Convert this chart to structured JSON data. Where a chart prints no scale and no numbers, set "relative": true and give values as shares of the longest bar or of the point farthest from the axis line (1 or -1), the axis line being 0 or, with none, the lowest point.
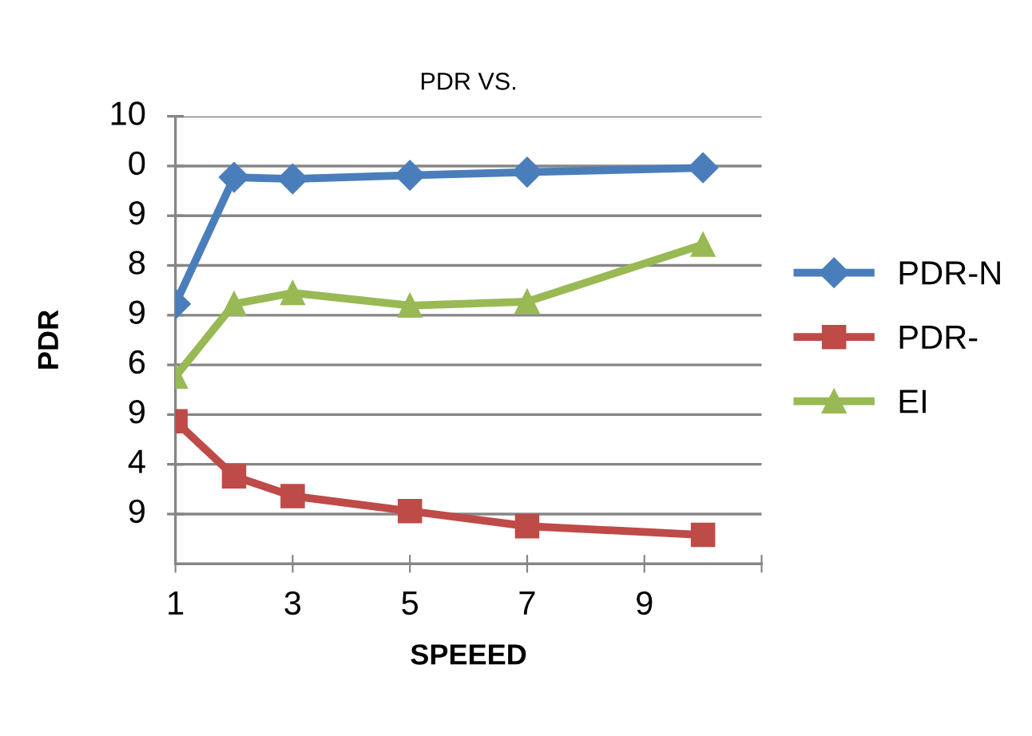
{
  "chart_data": {
    "type": "line",
    "title": "PDR VS.",
    "xlabel": "SPEEED",
    "ylabel": "PDR",
    "relative": true,
    "xlim": [
      1,
      11
    ],
    "xticks": [
      1,
      3,
      5,
      7,
      9,
      {
        "value": 11,
        "label": null
      }
    ],
    "annotations": [
      "10",
      "0",
      "9",
      "8",
      "9",
      "6",
      "9",
      "4",
      "9"
    ],
    "grid": "y",
    "legend": "right",
    "line_style": "solid",
    "series": [
      {
        "name": "PDR-N",
        "color": "#4a7ebb",
        "marker": "diamond",
        "x": [
          1,
          2,
          3,
          5,
          7,
          10
        ],
        "values": [
          0.656,
          0.976,
          0.972,
          0.981,
          0.989,
          1
        ]
      },
      {
        "name": "PDR-",
        "color": "#be4b48",
        "marker": "square",
        "x": [
          1,
          2,
          3,
          5,
          7,
          10
        ],
        "values": [
          0.36,
          0.221,
          0.171,
          0.133,
          0.095,
          0.073
        ]
      },
      {
        "name": "EI",
        "color": "#98b954",
        "marker": "triangle",
        "x": [
          1,
          2,
          3,
          5,
          7,
          10
        ],
        "values": [
          0.473,
          0.656,
          0.684,
          0.652,
          0.662,
          0.806
        ]
      }
    ]
  }
}
